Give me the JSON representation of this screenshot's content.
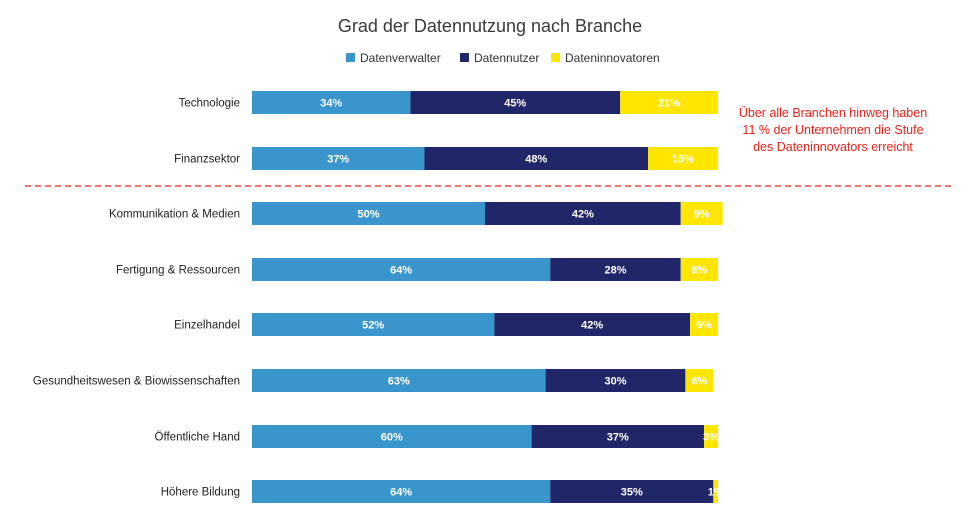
{
  "chart_data": {
    "type": "bar",
    "orientation": "horizontal",
    "stacked": true,
    "title": "Grad der Datennutzung nach Branche",
    "xlabel": "",
    "ylabel": "",
    "xlim": [
      0,
      100
    ],
    "grid": false,
    "legend_placement": "top",
    "categories": [
      "Technologie",
      "Finanzsektor",
      "Kommunikation & Medien",
      "Fertigung & Ressourcen",
      "Einzelhandel",
      "Gesundheitswesen & Biowissenschaften",
      "Öffentliche Hand",
      "Höhere Bildung"
    ],
    "series": [
      {
        "name": "Datenverwalter",
        "color": "#3995cc",
        "label_color": "#ffffff",
        "values": [
          34,
          37,
          50,
          64,
          52,
          63,
          60,
          64
        ],
        "labels": [
          "34%",
          "37%",
          "50%",
          "64%",
          "52%",
          "63%",
          "60%",
          "64%"
        ]
      },
      {
        "name": "Datennutzer",
        "color": "#212668",
        "label_color": "#ffffff",
        "values": [
          45,
          48,
          42,
          28,
          42,
          30,
          37,
          35
        ],
        "labels": [
          "45%",
          "48%",
          "42%",
          "28%",
          "42%",
          "30%",
          "37%",
          "35%"
        ]
      },
      {
        "name": "Dateninnovatoren",
        "color": "#ffe600",
        "label_color": "#ffffff",
        "values": [
          21,
          15,
          9,
          8,
          6,
          6,
          3,
          1
        ],
        "labels": [
          "21%",
          "15%",
          "9%",
          "8%",
          "6%",
          "6%",
          "3%",
          "1%"
        ]
      }
    ],
    "annotation": {
      "lines": [
        "Über alle Branchen hinweg haben",
        "11 % der Unternehmen die Stufe",
        "des Dateninnovators erreicht"
      ],
      "color": "#e8231b"
    },
    "separator_after_category": "Finanzsektor",
    "separator_color": "#e8231b"
  }
}
